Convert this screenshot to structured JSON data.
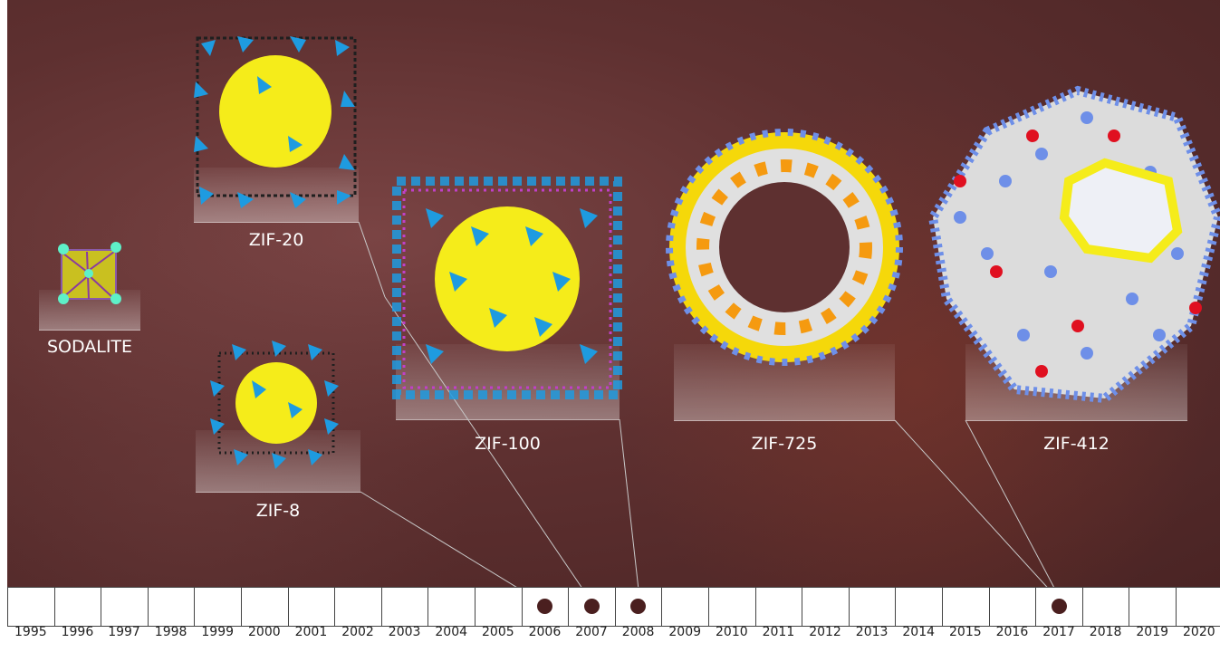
{
  "structures": [
    {
      "id": "sodalite",
      "label": "SODALITE"
    },
    {
      "id": "zif-20",
      "label": "ZIF-20"
    },
    {
      "id": "zif-8",
      "label": "ZIF-8"
    },
    {
      "id": "zif-100",
      "label": "ZIF-100"
    },
    {
      "id": "zif-725",
      "label": "ZIF-725"
    },
    {
      "id": "zif-412",
      "label": "ZIF-412"
    }
  ],
  "timeline": {
    "years": [
      "1995",
      "1996",
      "1997",
      "1998",
      "1999",
      "2000",
      "2001",
      "2002",
      "2003",
      "2004",
      "2005",
      "2006",
      "2007",
      "2008",
      "2009",
      "2010",
      "2011",
      "2012",
      "2013",
      "2014",
      "2015",
      "2016",
      "2017",
      "2018",
      "2019",
      "2020"
    ],
    "marked_years": [
      "2006",
      "2007",
      "2008",
      "2017"
    ]
  },
  "colors": {
    "background": "#5e3030",
    "cage_yellow": "#f5ec1a",
    "tetrahedra_blue": "#1e9be0",
    "oxygen_red": "#e01020",
    "nitrogen_blue": "#6e8fe8",
    "carbon_gray": "#d0d0d0",
    "dot": "#4a1f1f"
  }
}
